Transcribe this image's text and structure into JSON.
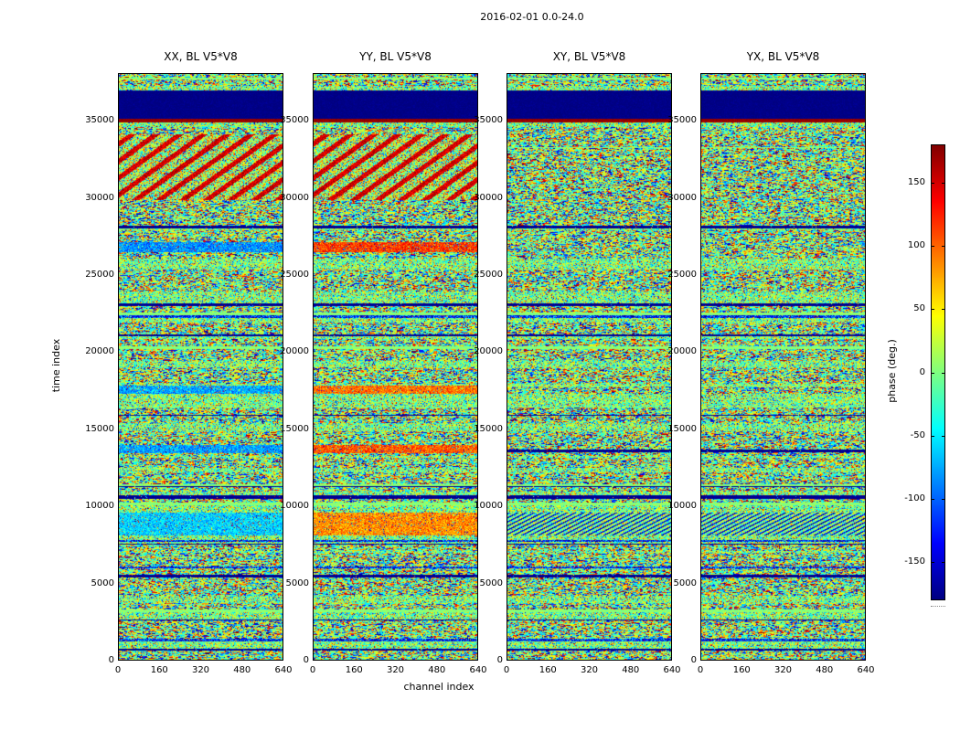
{
  "chart_data": {
    "type": "heatmap",
    "title": "2016-02-01 0.0-24.0",
    "xlabel": "channel index",
    "ylabel": "time index",
    "xlim": [
      0,
      640
    ],
    "ylim": [
      0,
      38100
    ],
    "x_ticks": [
      0,
      160,
      320,
      480,
      640
    ],
    "y_ticks": [
      0,
      5000,
      10000,
      15000,
      20000,
      25000,
      30000,
      35000
    ],
    "colorbar": {
      "label": "phase (deg.)",
      "ticks": [
        150,
        100,
        50,
        0,
        -50,
        -100,
        -150
      ],
      "vmin": -180,
      "vmax": 180,
      "colormap": "jet"
    },
    "panels": [
      {
        "title": "XX, BL V5*V8",
        "polarization": "XX",
        "baseline": "V5*V8"
      },
      {
        "title": "YY, BL V5*V8",
        "polarization": "YY",
        "baseline": "V5*V8"
      },
      {
        "title": "XY, BL V5*V8",
        "polarization": "XY",
        "baseline": "V5*V8"
      },
      {
        "title": "YX, BL V5*V8",
        "polarization": "YX",
        "baseline": "V5*V8"
      }
    ],
    "description": "Four waterfall plots of visibility phase (deg.) versus channel index (x) and time index (y) for polarization products XX, YY, XY, YX of baseline V5*V8 on 2016-02-01 0.0-24.0. Data is noise-like speckle with horizontal banded structure shared across panels: a dark navy blank band near the top (~35150-36950) bounded below by a thin red line, diagonal red fringe stripes around time 30000-34000 in XX and YY, cyan bands in XX (and matching yellow/orange bands in YY) near times 8200-9500, 13500-13950, 17350-17800 and 26550-27150, and many thin solid green / navy horizontal lines throughout.",
    "features": {
      "all": [
        {
          "t0": 35150,
          "t1": 36950,
          "type": "solid",
          "value": -178,
          "note": "dark navy blank band"
        },
        {
          "t0": 34980,
          "t1": 35150,
          "type": "solid",
          "value": 172,
          "note": "thin red line"
        }
      ],
      "XX": [
        {
          "t0": 29900,
          "t1": 34100,
          "type": "diag",
          "note": "diagonal red fringe stripes"
        },
        {
          "t0": 26550,
          "t1": 27150,
          "type": "solid_noise",
          "value": -85
        },
        {
          "t0": 17350,
          "t1": 17800,
          "type": "solid_noise",
          "value": -75
        },
        {
          "t0": 13500,
          "t1": 13950,
          "type": "solid_noise",
          "value": -80
        },
        {
          "t0": 8150,
          "t1": 9550,
          "type": "solid_noise",
          "value": -60
        }
      ],
      "YY": [
        {
          "t0": 29900,
          "t1": 34100,
          "type": "diag",
          "note": "diagonal red fringe stripes"
        },
        {
          "t0": 26550,
          "t1": 27150,
          "type": "solid_noise",
          "value": 115
        },
        {
          "t0": 17350,
          "t1": 17800,
          "type": "solid_noise",
          "value": 95
        },
        {
          "t0": 13500,
          "t1": 13950,
          "type": "solid_noise",
          "value": 105
        },
        {
          "t0": 8150,
          "t1": 9550,
          "type": "solid_noise",
          "value": 85
        }
      ],
      "XY": [
        {
          "t0": 8150,
          "t1": 9550,
          "type": "diag_fine"
        }
      ],
      "YX": [
        {
          "t0": 8150,
          "t1": 9550,
          "type": "diag_fine"
        }
      ]
    }
  }
}
